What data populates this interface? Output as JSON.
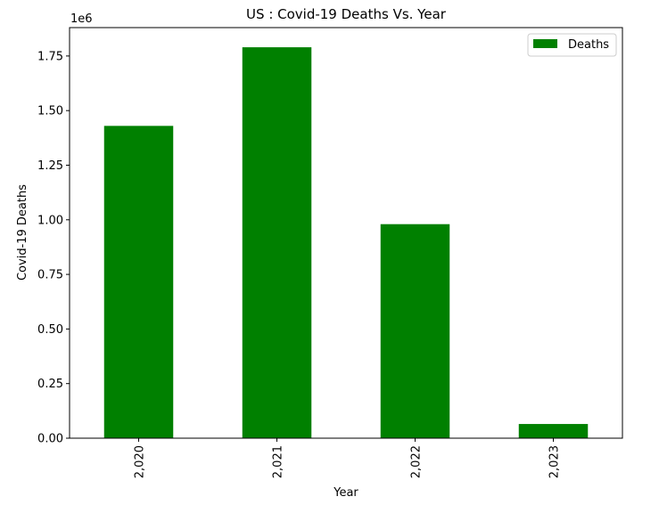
{
  "chart_data": {
    "type": "bar",
    "title": "US : Covid-19 Deaths Vs. Year",
    "xlabel": "Year",
    "ylabel": "Covid-19 Deaths",
    "offset_label": "1e6",
    "categories": [
      "2,020",
      "2,021",
      "2,022",
      "2,023"
    ],
    "series": [
      {
        "name": "Deaths",
        "color": "#008000",
        "values": [
          1430000,
          1790000,
          980000,
          65000
        ]
      }
    ],
    "ylim": [
      0,
      1880000
    ],
    "yticks": [
      {
        "value": 0,
        "label": "0.00"
      },
      {
        "value": 250000,
        "label": "0.25"
      },
      {
        "value": 500000,
        "label": "0.50"
      },
      {
        "value": 750000,
        "label": "0.75"
      },
      {
        "value": 1000000,
        "label": "1.00"
      },
      {
        "value": 1250000,
        "label": "1.25"
      },
      {
        "value": 1500000,
        "label": "1.50"
      },
      {
        "value": 1750000,
        "label": "1.75"
      }
    ],
    "grid": false,
    "legend_position": "top-right"
  }
}
